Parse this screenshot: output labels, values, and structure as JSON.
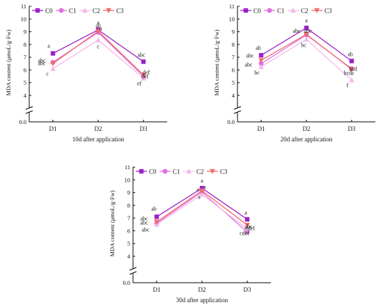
{
  "chart_data": [
    {
      "type": "line",
      "categories": [
        "D1",
        "D2",
        "D3"
      ],
      "ylabel": "MDA content (μmoL/g·Fw)",
      "xlabel": "10d after application",
      "yticks": [
        "0.0",
        "4",
        "5",
        "6",
        "7",
        "8",
        "9",
        "10",
        "11"
      ],
      "axis_break": true,
      "ylim": [
        4,
        11
      ],
      "legend_position": "top-left",
      "series": [
        {
          "name": "C0",
          "color": "#9b22c7",
          "marker": "square",
          "values": [
            7.3,
            9.15,
            6.65
          ],
          "labels": [
            "a",
            "a",
            "abc"
          ]
        },
        {
          "name": "C1",
          "color": "#e070e0",
          "marker": "circle",
          "values": [
            6.6,
            8.95,
            5.5
          ],
          "labels": [
            "abc",
            "ab",
            "def"
          ]
        },
        {
          "name": "C2",
          "color": "#f4b8ec",
          "marker": "triangle-up",
          "values": [
            6.1,
            8.35,
            5.35
          ],
          "labels": [
            "c",
            "c",
            "ef"
          ]
        },
        {
          "name": "C3",
          "color": "#f06a6a",
          "marker": "triangle-down",
          "values": [
            6.5,
            9.05,
            5.6
          ],
          "labels": [
            "abc",
            "a",
            "def"
          ]
        }
      ]
    },
    {
      "type": "line",
      "categories": [
        "D1",
        "D2",
        "D3"
      ],
      "ylabel": "MDA content (μmoL/g·Fw)",
      "xlabel": "20d after application",
      "yticks": [
        "0.0",
        "4",
        "5",
        "6",
        "7",
        "8",
        "9",
        "10",
        "11"
      ],
      "axis_break": true,
      "ylim": [
        4,
        11
      ],
      "legend_position": "top-left",
      "series": [
        {
          "name": "C0",
          "color": "#9b22c7",
          "marker": "square",
          "values": [
            7.15,
            9.3,
            6.7
          ],
          "labels": [
            "ab",
            "a",
            "ab"
          ]
        },
        {
          "name": "C1",
          "color": "#e070e0",
          "marker": "circle",
          "values": [
            6.5,
            8.75,
            6.1
          ],
          "labels": [
            "abc",
            "abc",
            "bcd"
          ]
        },
        {
          "name": "C2",
          "color": "#f4b8ec",
          "marker": "triangle-up",
          "values": [
            6.25,
            8.4,
            5.2
          ],
          "labels": [
            "bc",
            "bc",
            "f"
          ]
        },
        {
          "name": "C3",
          "color": "#f06a6a",
          "marker": "triangle-down",
          "values": [
            6.75,
            8.8,
            6.05
          ],
          "labels": [
            "abc",
            "abc",
            "bcde"
          ]
        }
      ]
    },
    {
      "type": "line",
      "categories": [
        "D1",
        "D2",
        "D3"
      ],
      "ylabel": "MDA content (μmoL/g·Fw)",
      "xlabel": "30d after application",
      "yticks": [
        "0.0",
        "4",
        "5",
        "6",
        "7",
        "8",
        "9",
        "10",
        "11"
      ],
      "axis_break": true,
      "ylim": [
        4,
        11
      ],
      "legend_position": "top-left",
      "series": [
        {
          "name": "C0",
          "color": "#9b22c7",
          "marker": "square",
          "values": [
            7.1,
            9.35,
            6.9
          ],
          "labels": [
            "ab",
            "a",
            "a"
          ]
        },
        {
          "name": "C1",
          "color": "#e070e0",
          "marker": "circle",
          "values": [
            6.6,
            9.05,
            5.9
          ],
          "labels": [
            "abc",
            "a",
            "cdef"
          ]
        },
        {
          "name": "C2",
          "color": "#f4b8ec",
          "marker": "triangle-up",
          "values": [
            6.5,
            8.85,
            6.15
          ],
          "labels": [
            "abc",
            "a",
            "cdef"
          ]
        },
        {
          "name": "C3",
          "color": "#f06a6a",
          "marker": "triangle-down",
          "values": [
            6.7,
            9.15,
            6.45
          ],
          "labels": [
            "abc",
            "a",
            "abc"
          ]
        }
      ]
    }
  ]
}
